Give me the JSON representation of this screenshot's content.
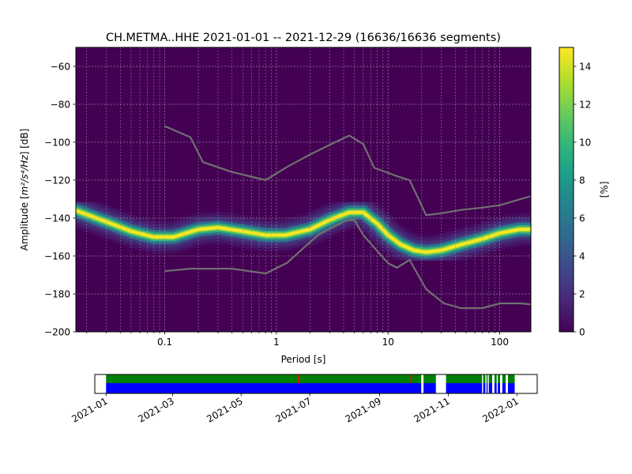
{
  "chart_data": [
    {
      "type": "heatmap",
      "title": "CH.METMA..HHE   2021-01-01 -- 2021-12-29  (16636/16636 segments)",
      "xlabel": "Period [s]",
      "ylabel_main": "Amplitude [",
      "ylabel_unit": "m²/s⁴/Hz",
      "ylabel_end": "] [dB]",
      "x_scale": "log",
      "xlim": [
        0.016,
        190
      ],
      "ylim": [
        -200,
        -50
      ],
      "x_ticks": [
        0.1,
        1,
        10,
        100
      ],
      "x_tick_labels": [
        "0.1",
        "1",
        "10",
        "100"
      ],
      "y_ticks": [
        -60,
        -80,
        -100,
        -120,
        -140,
        -160,
        -180,
        -200
      ],
      "y_tick_labels": [
        "−60",
        "−80",
        "−100",
        "−120",
        "−140",
        "−160",
        "−180",
        "−200"
      ],
      "grid": true,
      "colorbar": {
        "label": "[%]",
        "range": [
          0,
          15
        ],
        "ticks": [
          0,
          2,
          4,
          6,
          8,
          10,
          12,
          14
        ],
        "tick_labels": [
          "0",
          "2",
          "4",
          "6",
          "8",
          "10",
          "12",
          "14"
        ],
        "colormap": [
          "#440154",
          "#482878",
          "#3e4989",
          "#31688e",
          "#26828e",
          "#1f9e89",
          "#35b779",
          "#6ece58",
          "#b5de2b",
          "#fde725"
        ]
      },
      "density_ridge": {
        "x": [
          0.016,
          0.03,
          0.05,
          0.08,
          0.12,
          0.2,
          0.3,
          0.5,
          0.8,
          1.2,
          2,
          3,
          4.5,
          6,
          8,
          10,
          13,
          17,
          22,
          30,
          45,
          70,
          100,
          150,
          190
        ],
        "y": [
          -136,
          -142,
          -147,
          -150,
          -150,
          -146,
          -145,
          -147,
          -149,
          -149,
          -146,
          -141,
          -137,
          -137,
          -143,
          -149,
          -154,
          -157,
          -158,
          -157,
          -154,
          -151,
          -148,
          -146,
          -146
        ]
      },
      "noise_models": [
        {
          "x": [
            0.1,
            0.17,
            0.22,
            0.4,
            0.8,
            1.25,
            2,
            3,
            3.8,
            4.5,
            6,
            7.5,
            12.5,
            15.6,
            21.9,
            31.6,
            45,
            70,
            101,
            154,
            190
          ],
          "y": [
            -91.5,
            -97.4,
            -110.5,
            -115.7,
            -120,
            -113,
            -106.5,
            -101.4,
            -98.5,
            -96.5,
            -101,
            -113.5,
            -118.3,
            -120,
            -138.5,
            -137.3,
            -135.7,
            -134.5,
            -133.2,
            -130,
            -128.5
          ]
        },
        {
          "x": [
            0.1,
            0.17,
            0.4,
            0.8,
            1.24,
            2.4,
            4.3,
            5,
            6,
            10,
            12,
            15.6,
            21.9,
            31.6,
            45,
            70,
            101,
            154,
            190
          ],
          "y": [
            -168,
            -166.7,
            -166.7,
            -169.2,
            -163.7,
            -148.6,
            -141.1,
            -141.1,
            -149,
            -163.8,
            -166.2,
            -162.1,
            -177.5,
            -185,
            -187.5,
            -187.5,
            -185,
            -185,
            -185.6
          ]
        }
      ]
    },
    {
      "type": "area",
      "x_tick_labels": [
        "2021-01",
        "2021-03",
        "2021-05",
        "2021-07",
        "2021-09",
        "2021-11",
        "2022-01"
      ],
      "x_ticks": [
        "2021-01-01",
        "2021-03-01",
        "2021-05-01",
        "2021-07-01",
        "2021-09-01",
        "2021-11-01",
        "2022-01-01"
      ],
      "xlim": [
        "2020-12-22",
        "2022-01-19"
      ],
      "data_span": [
        "2021-01-01",
        "2021-12-29"
      ],
      "coverage_gaps": [
        [
          "2021-10-08",
          "2021-10-09"
        ],
        [
          "2021-10-21",
          "2021-10-29"
        ],
        [
          "2021-12-01",
          "2021-12-01"
        ],
        [
          "2021-12-04",
          "2021-12-04"
        ],
        [
          "2021-12-06",
          "2021-12-06"
        ],
        [
          "2021-12-10",
          "2021-12-11"
        ],
        [
          "2021-12-14",
          "2021-12-14"
        ],
        [
          "2021-12-17",
          "2021-12-18"
        ],
        [
          "2021-12-22",
          "2021-12-23"
        ]
      ],
      "marker_dates": [
        "2021-06-21",
        "2021-09-29"
      ],
      "colors": {
        "data": "#0000ff",
        "quality": "#008000",
        "marker": "#ff0000"
      }
    }
  ]
}
